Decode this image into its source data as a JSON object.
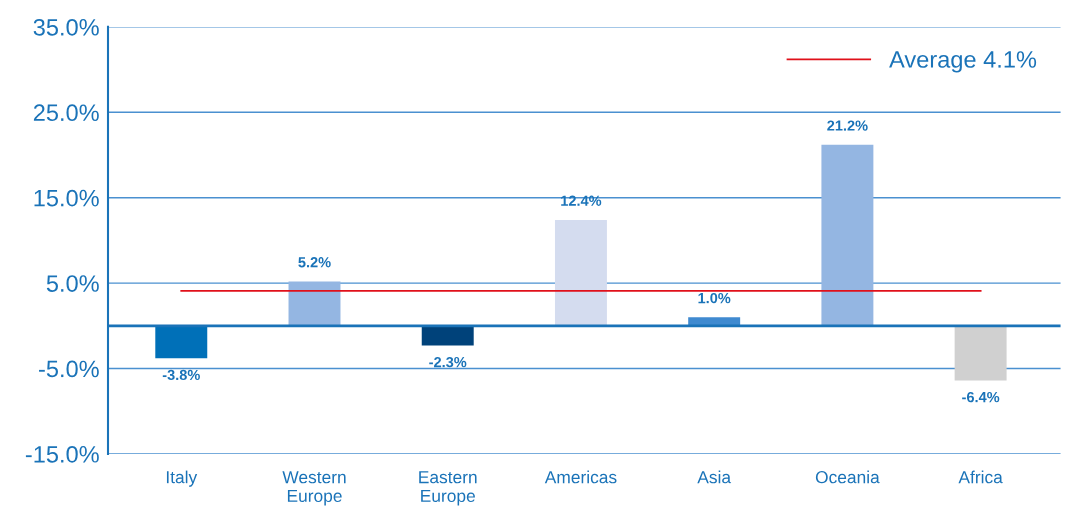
{
  "chart_data": {
    "type": "bar",
    "categories": [
      "Italy",
      "Western\nEurope",
      "Eastern\nEurope",
      "Americas",
      "Asia",
      "Oceania",
      "Africa"
    ],
    "values": [
      -3.8,
      5.2,
      -2.3,
      12.4,
      1.0,
      21.2,
      -6.4
    ],
    "colors": [
      "#0070b8",
      "#94b6e2",
      "#00427a",
      "#d4dcef",
      "#3f8ad0",
      "#94b6e2",
      "#d0d0d0"
    ],
    "value_labels": [
      "-3.8%",
      "5.2%",
      "-2.3%",
      "12.4%",
      "1.0%",
      "21.2%",
      "-6.4%"
    ],
    "ylim": [
      -15,
      35
    ],
    "yticks": [
      {
        "value": -15,
        "label": "-15.0%"
      },
      {
        "value": -5,
        "label": "-5.0%"
      },
      {
        "value": 5,
        "label": "5.0%"
      },
      {
        "value": 15,
        "label": "15.0%"
      },
      {
        "value": 25,
        "label": "25.0%"
      },
      {
        "value": 35,
        "label": "35.0%"
      }
    ],
    "grid": "y",
    "ref_lines": [
      {
        "axis": "y",
        "value": 0,
        "color": "#1a73b8",
        "line_style": "solid"
      },
      {
        "axis": "y",
        "value": 4.1,
        "label": "Average 4.1%",
        "color": "#e0101a",
        "line_style": "solid"
      }
    ],
    "legend": "top right"
  }
}
